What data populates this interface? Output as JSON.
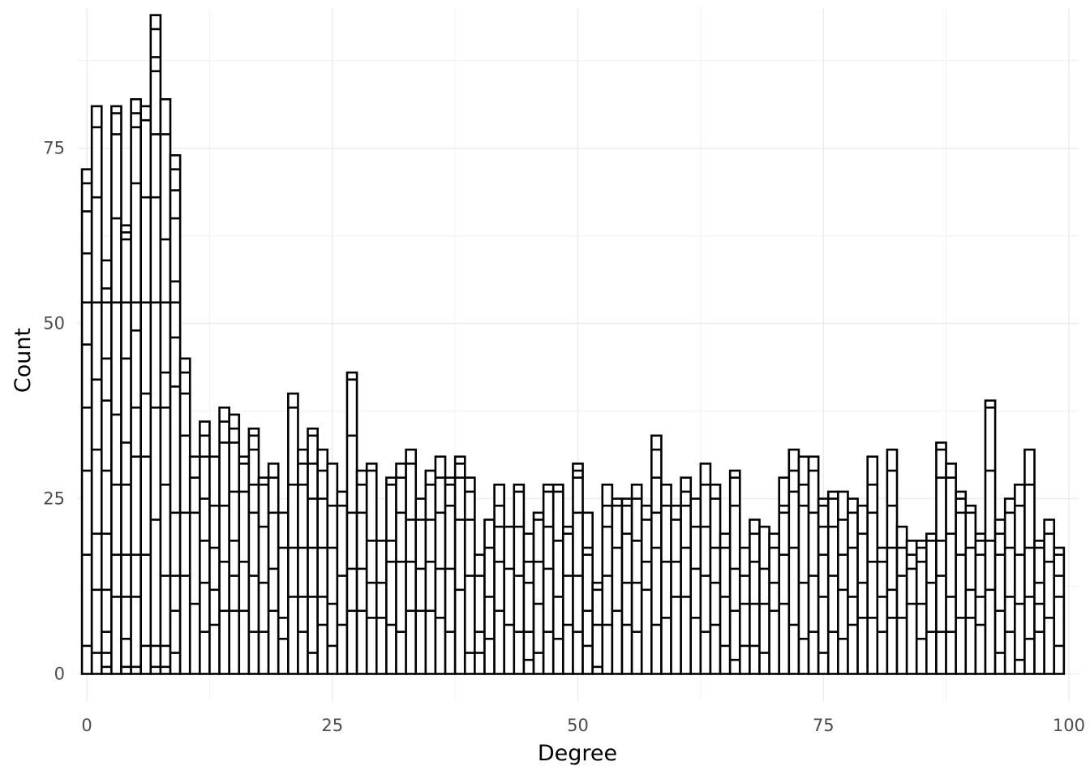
{
  "chart_data": {
    "type": "bar",
    "subtype": "stacked-histogram",
    "title": "",
    "xlabel": "Degree",
    "ylabel": "Count",
    "xlim": [
      -1,
      101
    ],
    "ylim": [
      -4,
      95
    ],
    "x_ticks": [
      0,
      25,
      50,
      75,
      100
    ],
    "y_ticks": [
      0,
      25,
      50,
      75
    ],
    "grid": true,
    "bar_fill": "#ffffff",
    "bar_stroke": "#000000",
    "categories": [
      0,
      1,
      2,
      3,
      4,
      5,
      6,
      7,
      8,
      9,
      10,
      11,
      12,
      13,
      14,
      15,
      16,
      17,
      18,
      19,
      20,
      21,
      22,
      23,
      24,
      25,
      26,
      27,
      28,
      29,
      30,
      31,
      32,
      33,
      34,
      35,
      36,
      37,
      38,
      39,
      40,
      41,
      42,
      43,
      44,
      45,
      46,
      47,
      48,
      49,
      50,
      51,
      52,
      53,
      54,
      55,
      56,
      57,
      58,
      59,
      60,
      61,
      62,
      63,
      64,
      65,
      66,
      67,
      68,
      69,
      70,
      71,
      72,
      73,
      74,
      75,
      76,
      77,
      78,
      79,
      80,
      81,
      82,
      83,
      84,
      85,
      86,
      87,
      88,
      89,
      90,
      91,
      92,
      93,
      94,
      95,
      96,
      97,
      98,
      99
    ],
    "totals": [
      72,
      81,
      59,
      81,
      64,
      82,
      81,
      94,
      82,
      74,
      45,
      31,
      36,
      31,
      38,
      37,
      31,
      35,
      28,
      30,
      23,
      40,
      32,
      35,
      32,
      30,
      26,
      43,
      29,
      30,
      19,
      28,
      30,
      32,
      25,
      29,
      31,
      28,
      31,
      28,
      17,
      22,
      27,
      21,
      27,
      20,
      23,
      27,
      27,
      21,
      30,
      23,
      13,
      27,
      25,
      25,
      27,
      24,
      34,
      27,
      24,
      28,
      25,
      30,
      27,
      20,
      29,
      18,
      22,
      21,
      20,
      28,
      32,
      31,
      31,
      25,
      26,
      26,
      25,
      24,
      31,
      18,
      32,
      21,
      19,
      19,
      20,
      33,
      30,
      26,
      24,
      20,
      39,
      22,
      25,
      27,
      32,
      19,
      22,
      18
    ],
    "segment_boundaries": [
      [
        4,
        17,
        29,
        38,
        47,
        53,
        60,
        66,
        70
      ],
      [
        3,
        12,
        20,
        32,
        42,
        53,
        68,
        78
      ],
      [
        1,
        3,
        6,
        12,
        20,
        29,
        39,
        45,
        53,
        55
      ],
      [
        11,
        17,
        27,
        37,
        53,
        65,
        77,
        80
      ],
      [
        1,
        5,
        11,
        17,
        27,
        33,
        45,
        53,
        62,
        63
      ],
      [
        1,
        11,
        17,
        31,
        38,
        49,
        53,
        70,
        78,
        80
      ],
      [
        4,
        17,
        31,
        40,
        53,
        68,
        79
      ],
      [
        1,
        4,
        22,
        38,
        53,
        68,
        77,
        86,
        88,
        92
      ],
      [
        1,
        4,
        14,
        27,
        38,
        43,
        53,
        62,
        77
      ],
      [
        3,
        9,
        14,
        23,
        41,
        48,
        53,
        56,
        65,
        69,
        72
      ],
      [
        14,
        23,
        34,
        40,
        43
      ],
      [
        10,
        23,
        28
      ],
      [
        6,
        13,
        19,
        25,
        31,
        34
      ],
      [
        7,
        12,
        18,
        24,
        31
      ],
      [
        9,
        16,
        24,
        33,
        36
      ],
      [
        9,
        14,
        19,
        26,
        33,
        35
      ],
      [
        9,
        16,
        26,
        30
      ],
      [
        6,
        14,
        23,
        27,
        32,
        34
      ],
      [
        6,
        13,
        21,
        27
      ],
      [
        9,
        15,
        23,
        28
      ],
      [
        5,
        8,
        18,
        23
      ],
      [
        11,
        18,
        27,
        38
      ],
      [
        6,
        11,
        18,
        27,
        30
      ],
      [
        3,
        11,
        18,
        25,
        30,
        34
      ],
      [
        7,
        11,
        18,
        25,
        29
      ],
      [
        4,
        10,
        18,
        24
      ],
      [
        7,
        14,
        24
      ],
      [
        9,
        15,
        23,
        34,
        42
      ],
      [
        9,
        15,
        23,
        27
      ],
      [
        8,
        13,
        19,
        29
      ],
      [
        8,
        13
      ],
      [
        7,
        16,
        19,
        27
      ],
      [
        6,
        16,
        23,
        28
      ],
      [
        9,
        16,
        22,
        30
      ],
      [
        9,
        15,
        22
      ],
      [
        9,
        16,
        22,
        27
      ],
      [
        8,
        15,
        23,
        28
      ],
      [
        6,
        15,
        24,
        27
      ],
      [
        12,
        22,
        28,
        30
      ],
      [
        3,
        14,
        22,
        26
      ],
      [
        3,
        6,
        14
      ],
      [
        5,
        11,
        18
      ],
      [
        9,
        16,
        21,
        24
      ],
      [
        7,
        15,
        21
      ],
      [
        6,
        14,
        21,
        26
      ],
      [
        2,
        6,
        13,
        16
      ],
      [
        3,
        10,
        16,
        22
      ],
      [
        6,
        15,
        21,
        26
      ],
      [
        5,
        11,
        19,
        26
      ],
      [
        7,
        14,
        20
      ],
      [
        6,
        14,
        23,
        28,
        29
      ],
      [
        4,
        9,
        17,
        18
      ],
      [
        1,
        7,
        12
      ],
      [
        7,
        14,
        21,
        24
      ],
      [
        9,
        18,
        24
      ],
      [
        7,
        13,
        20,
        24
      ],
      [
        6,
        13,
        19,
        25
      ],
      [
        12,
        16,
        22
      ],
      [
        7,
        18,
        23,
        28,
        32
      ],
      [
        8,
        16,
        24
      ],
      [
        11,
        16,
        22
      ],
      [
        11,
        18,
        24,
        26
      ],
      [
        8,
        15,
        21
      ],
      [
        6,
        14,
        21,
        27
      ],
      [
        7,
        13,
        18,
        25
      ],
      [
        4,
        11,
        18
      ],
      [
        2,
        9,
        15,
        24,
        28
      ],
      [
        4,
        10,
        14
      ],
      [
        4,
        10,
        16,
        20
      ],
      [
        3,
        10,
        15
      ],
      [
        9,
        13,
        18
      ],
      [
        10,
        17,
        23,
        24
      ],
      [
        7,
        18,
        26,
        29
      ],
      [
        5,
        13,
        24,
        27
      ],
      [
        6,
        14,
        23,
        29
      ],
      [
        3,
        11,
        17,
        21,
        24
      ],
      [
        6,
        14,
        21,
        25
      ],
      [
        5,
        12,
        17,
        22
      ],
      [
        7,
        11,
        18,
        23
      ],
      [
        8,
        13,
        20
      ],
      [
        8,
        16,
        23,
        27
      ],
      [
        6,
        11,
        16
      ],
      [
        8,
        12,
        18,
        24,
        29
      ],
      [
        8,
        14,
        18
      ],
      [
        10,
        15,
        17
      ],
      [
        5,
        10,
        16,
        18
      ],
      [
        6,
        13,
        19
      ],
      [
        6,
        14,
        19,
        28,
        32
      ],
      [
        6,
        11,
        20,
        28
      ],
      [
        8,
        17,
        23,
        25
      ],
      [
        8,
        12,
        18,
        23
      ],
      [
        7,
        11,
        17,
        19
      ],
      [
        12,
        19,
        29,
        38
      ],
      [
        3,
        9,
        17,
        20
      ],
      [
        6,
        11,
        18,
        23
      ],
      [
        2,
        10,
        17,
        24
      ],
      [
        5,
        11,
        18,
        27
      ],
      [
        6,
        10,
        13,
        18
      ],
      [
        8,
        16,
        20
      ],
      [
        4,
        11,
        14,
        17
      ]
    ]
  }
}
